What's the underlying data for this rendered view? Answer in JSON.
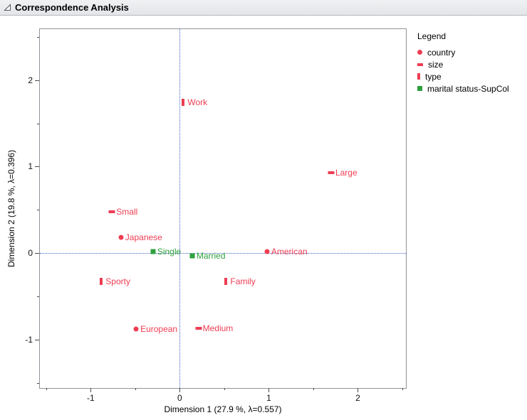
{
  "window": {
    "title": "Correspondence Analysis"
  },
  "legend": {
    "title": "Legend",
    "items": [
      {
        "label": "country",
        "marker": "circle",
        "color": "#ee3d53"
      },
      {
        "label": "size",
        "marker": "hbar",
        "color": "#ee3d53"
      },
      {
        "label": "type",
        "marker": "vbar",
        "color": "#ee3d53"
      },
      {
        "label": "marital status-SupCol",
        "marker": "square",
        "color": "#2ea13c"
      }
    ]
  },
  "chart_data": {
    "type": "scatter",
    "title": "Correspondence Analysis",
    "xlabel": "Dimension 1  (27.9 %, λ=0.557)",
    "ylabel": "Dimension 2  (19.8 %, λ=0.396)",
    "xlim": [
      -1.57,
      2.54
    ],
    "ylim": [
      -1.56,
      2.59
    ],
    "x_ticks": [
      -1,
      0,
      1,
      2
    ],
    "y_ticks": [
      -1,
      0,
      1,
      2
    ],
    "x_minor_ticks": [
      -1.5,
      -0.5,
      0.5,
      1.5,
      2.5
    ],
    "y_minor_ticks": [
      -1.5,
      -0.5,
      0.5,
      1.5,
      2.5
    ],
    "grid": false,
    "legend_position": "right",
    "reference_lines": {
      "x": 0,
      "y": 0,
      "style": "dotted",
      "color": "#3f62c8"
    },
    "series": [
      {
        "name": "country",
        "marker": "circle",
        "color": "#ee3d53",
        "points": [
          {
            "label": "Japanese",
            "x": -0.66,
            "y": 0.18
          },
          {
            "label": "American",
            "x": 0.98,
            "y": 0.02
          },
          {
            "label": "European",
            "x": -0.49,
            "y": -0.88
          }
        ]
      },
      {
        "name": "size",
        "marker": "hbar",
        "color": "#ee3d53",
        "points": [
          {
            "label": "Small",
            "x": -0.76,
            "y": 0.48
          },
          {
            "label": "Large",
            "x": 1.7,
            "y": 0.93
          },
          {
            "label": "Medium",
            "x": 0.21,
            "y": -0.87
          }
        ]
      },
      {
        "name": "type",
        "marker": "vbar",
        "color": "#ee3d53",
        "points": [
          {
            "label": "Work",
            "x": 0.04,
            "y": 1.74
          },
          {
            "label": "Sporty",
            "x": -0.88,
            "y": -0.33
          },
          {
            "label": "Family",
            "x": 0.52,
            "y": -0.33
          }
        ]
      },
      {
        "name": "marital status-SupCol",
        "marker": "square",
        "color": "#2ea13c",
        "points": [
          {
            "label": "Single",
            "x": -0.3,
            "y": 0.02
          },
          {
            "label": "Married",
            "x": 0.14,
            "y": -0.03
          }
        ]
      }
    ]
  }
}
